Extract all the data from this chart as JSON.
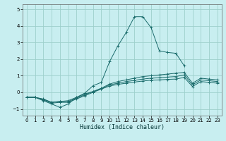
{
  "title": "",
  "xlabel": "Humidex (Indice chaleur)",
  "ylabel": "",
  "bg_color": "#c8eef0",
  "grid_color": "#9dcfcc",
  "line_color": "#1a6b6b",
  "marker": "+",
  "xlim": [
    -0.5,
    23.5
  ],
  "ylim": [
    -1.4,
    5.3
  ],
  "xticks": [
    0,
    1,
    2,
    3,
    4,
    5,
    6,
    7,
    8,
    9,
    10,
    11,
    12,
    13,
    14,
    15,
    16,
    17,
    18,
    19,
    20,
    21,
    22,
    23
  ],
  "yticks": [
    -1,
    0,
    1,
    2,
    3,
    4,
    5
  ],
  "lines": [
    {
      "x": [
        0,
        1,
        2,
        3,
        4,
        5,
        6,
        7,
        8,
        9,
        10,
        11,
        12,
        13,
        14,
        15,
        16,
        17,
        18,
        19
      ],
      "y": [
        -0.3,
        -0.3,
        -0.5,
        -0.7,
        -0.9,
        -0.7,
        -0.3,
        -0.05,
        0.4,
        0.6,
        1.85,
        2.8,
        3.6,
        4.55,
        4.55,
        3.9,
        2.5,
        2.4,
        2.35,
        1.6
      ]
    },
    {
      "x": [
        0,
        1,
        2,
        3,
        4,
        5,
        6,
        7,
        8,
        9,
        10,
        11,
        12,
        13,
        14,
        15,
        16,
        17,
        18,
        19,
        20,
        21,
        22,
        23
      ],
      "y": [
        -0.3,
        -0.3,
        -0.4,
        -0.6,
        -0.55,
        -0.55,
        -0.35,
        -0.15,
        0.05,
        0.25,
        0.5,
        0.65,
        0.75,
        0.85,
        0.95,
        1.0,
        1.05,
        1.1,
        1.15,
        1.2,
        0.55,
        0.85,
        0.8,
        0.75
      ]
    },
    {
      "x": [
        0,
        1,
        2,
        3,
        4,
        5,
        6,
        7,
        8,
        9,
        10,
        11,
        12,
        13,
        14,
        15,
        16,
        17,
        18,
        19,
        20,
        21,
        22,
        23
      ],
      "y": [
        -0.3,
        -0.3,
        -0.45,
        -0.65,
        -0.6,
        -0.6,
        -0.4,
        -0.2,
        0.0,
        0.2,
        0.45,
        0.55,
        0.65,
        0.72,
        0.8,
        0.85,
        0.88,
        0.92,
        0.95,
        1.05,
        0.45,
        0.75,
        0.7,
        0.65
      ]
    },
    {
      "x": [
        0,
        1,
        2,
        3,
        4,
        5,
        6,
        7,
        8,
        9,
        10,
        11,
        12,
        13,
        14,
        15,
        16,
        17,
        18,
        19,
        20,
        21,
        22,
        23
      ],
      "y": [
        -0.3,
        -0.3,
        -0.42,
        -0.6,
        -0.55,
        -0.5,
        -0.3,
        -0.1,
        0.05,
        0.2,
        0.38,
        0.48,
        0.55,
        0.62,
        0.68,
        0.73,
        0.75,
        0.78,
        0.8,
        0.9,
        0.35,
        0.65,
        0.6,
        0.55
      ]
    }
  ]
}
